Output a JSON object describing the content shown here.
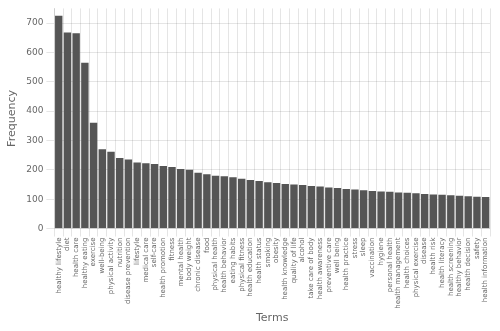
{
  "chart_data": {
    "type": "bar",
    "categories": [
      "healthy lifestyle",
      "diet",
      "health care",
      "healthy eating",
      "exercise",
      "well-being",
      "physical activity",
      "nutrition",
      "disease prevention",
      "lifestyle",
      "medical care",
      "self-care",
      "health promotion",
      "fitness",
      "mental health",
      "body weight",
      "chronic disease",
      "food",
      "physical health",
      "health behavior",
      "eating habits",
      "physical fitness",
      "health education",
      "health status",
      "smoking",
      "obesity",
      "health knowledge",
      "quality of life",
      "alcohol",
      "take care of body",
      "health awareness",
      "preventive care",
      "well being",
      "health practice",
      "stress",
      "sleep",
      "vaccination",
      "hygiene",
      "personal health",
      "health management",
      "health choices",
      "physical exercise",
      "disease",
      "health risk",
      "health literacy",
      "health screening",
      "healthy behavior",
      "health decision",
      "safety",
      "health information"
    ],
    "values": [
      725,
      668,
      665,
      565,
      360,
      270,
      262,
      240,
      235,
      225,
      222,
      220,
      213,
      210,
      203,
      200,
      190,
      185,
      180,
      178,
      175,
      170,
      165,
      162,
      158,
      155,
      152,
      150,
      148,
      145,
      143,
      140,
      138,
      135,
      133,
      130,
      128,
      126,
      125,
      123,
      122,
      120,
      118,
      116,
      115,
      113,
      112,
      110,
      108,
      107
    ],
    "color": "#555555",
    "xlabel": "Terms",
    "ylabel": "Frequency",
    "ylim": [
      0,
      750
    ],
    "yticks": [
      0,
      100,
      200,
      300,
      400,
      500,
      600,
      700
    ],
    "grid": true
  }
}
